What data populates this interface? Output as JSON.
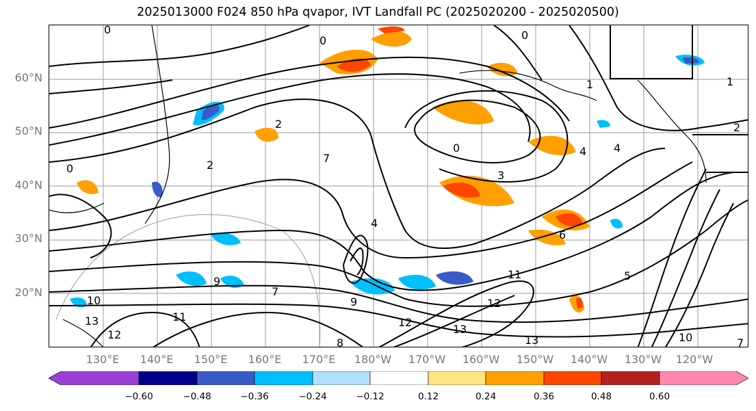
{
  "title": "2025013000 F024 850 hPa qvapor, IVT Landfall PC (2025020200 - 2025020500)",
  "lat_labels": [
    "60°N",
    "50°N",
    "40°N",
    "30°N",
    "20°N"
  ],
  "lon_labels": [
    "130°E",
    "140°E",
    "150°E",
    "160°E",
    "170°E",
    "180°W",
    "170°W",
    "160°W",
    "150°W",
    "140°W",
    "130°W",
    "120°W"
  ],
  "contour_labels": [
    "0",
    "0",
    "0",
    "0",
    "0",
    "1",
    "1",
    "2",
    "2",
    "2",
    "3",
    "4",
    "4",
    "4",
    "5",
    "6",
    "7",
    "7",
    "9",
    "9",
    "10",
    "10",
    "11",
    "11",
    "12",
    "12",
    "12",
    "13",
    "13",
    "13",
    "7",
    "8"
  ],
  "colorbar": {
    "ticks": [
      "−0.60",
      "−0.48",
      "−0.36",
      "−0.24",
      "−0.12",
      "0.12",
      "0.24",
      "0.36",
      "0.48",
      "0.60"
    ],
    "colors": [
      "#9a3fd3",
      "#00008b",
      "#3a5bc7",
      "#00bfff",
      "#afe0fb",
      "#ffffff",
      "#ffe680",
      "#ffa000",
      "#ff4500",
      "#b22222",
      "#ff88b0"
    ]
  }
}
